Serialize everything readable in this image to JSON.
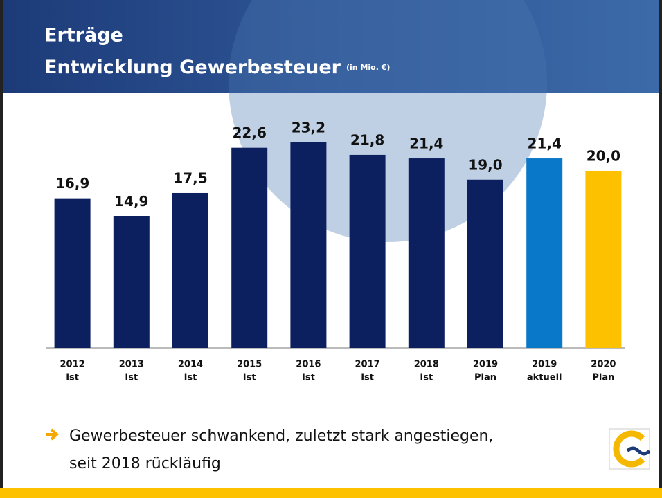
{
  "header": {
    "title": "Erträge",
    "subtitle": "Entwicklung Gewerbesteuer",
    "unit": "(in Mio. €)"
  },
  "chart_data": {
    "type": "bar",
    "categories": [
      [
        "2012",
        "Ist"
      ],
      [
        "2013",
        "Ist"
      ],
      [
        "2014",
        "Ist"
      ],
      [
        "2015",
        "Ist"
      ],
      [
        "2016",
        "Ist"
      ],
      [
        "2017",
        "Ist"
      ],
      [
        "2018",
        "Ist"
      ],
      [
        "2019",
        "Plan"
      ],
      [
        "2019",
        "aktuell"
      ],
      [
        "2020",
        "Plan"
      ]
    ],
    "values": [
      16.9,
      14.9,
      17.5,
      22.6,
      23.2,
      21.8,
      21.4,
      19.0,
      21.4,
      20.0
    ],
    "value_labels": [
      "16,9",
      "14,9",
      "17,5",
      "22,6",
      "23,2",
      "21,8",
      "21,4",
      "19,0",
      "21,4",
      "20,0"
    ],
    "colors": [
      "#0c1f5e",
      "#0c1f5e",
      "#0c1f5e",
      "#0c1f5e",
      "#0c1f5e",
      "#0c1f5e",
      "#0c1f5e",
      "#0c1f5e",
      "#0a78c8",
      "#fdc100"
    ]
  },
  "footer": {
    "lines": [
      "Gewerbesteuer schwankend, zuletzt stark angestiegen,",
      "seit 2018 rückläufig"
    ]
  }
}
